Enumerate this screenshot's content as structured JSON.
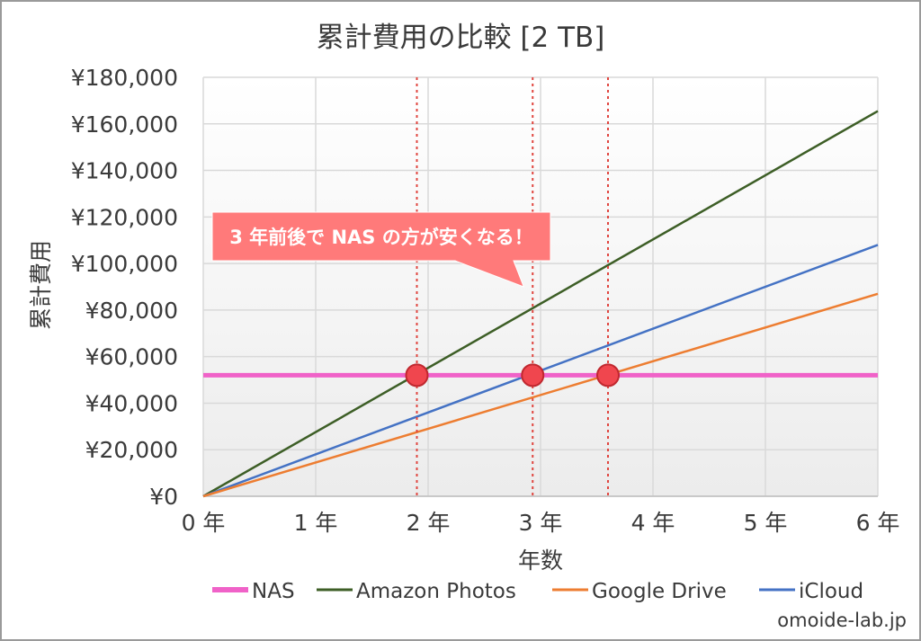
{
  "chart_data": {
    "type": "line",
    "title": "累計費用の比較 [2 TB]",
    "xlabel": "年数",
    "ylabel": "累計費用",
    "x": [
      0,
      6
    ],
    "xlim": [
      0,
      6
    ],
    "ylim": [
      0,
      180000
    ],
    "x_ticks": [
      0,
      1,
      2,
      3,
      4,
      5,
      6
    ],
    "x_tick_labels": [
      "0 年",
      "1 年",
      "2 年",
      "3 年",
      "4 年",
      "5 年",
      "6 年"
    ],
    "y_ticks": [
      0,
      20000,
      40000,
      60000,
      80000,
      100000,
      120000,
      140000,
      160000,
      180000
    ],
    "y_tick_labels": [
      "¥0",
      "¥20,000",
      "¥40,000",
      "¥60,000",
      "¥80,000",
      "¥100,000",
      "¥120,000",
      "¥140,000",
      "¥160,000",
      "¥180,000"
    ],
    "grid": true,
    "legend_position": "bottom",
    "series": [
      {
        "name": "NAS",
        "color": "#f062c8",
        "values": [
          52000,
          52000
        ]
      },
      {
        "name": "Amazon Photos",
        "color": "#3d5e26",
        "values": [
          0,
          165500
        ]
      },
      {
        "name": "Google Drive",
        "color": "#ed7d31",
        "values": [
          0,
          87000
        ]
      },
      {
        "name": "iCloud",
        "color": "#4472c4",
        "values": [
          0,
          108000
        ]
      }
    ],
    "vlines": [
      1.9,
      2.93,
      3.6
    ],
    "intersections": [
      {
        "x": 1.9,
        "y": 52000
      },
      {
        "x": 2.93,
        "y": 52000
      },
      {
        "x": 3.6,
        "y": 52000
      }
    ],
    "marker_color": "#f0464e",
    "callout": {
      "text": "3 年前後で NAS の方が安くなる！",
      "color": "#ff7a7a",
      "pointer_x": 2.85,
      "pointer_y": 90000
    }
  },
  "watermark": "omoide-lab.jp"
}
